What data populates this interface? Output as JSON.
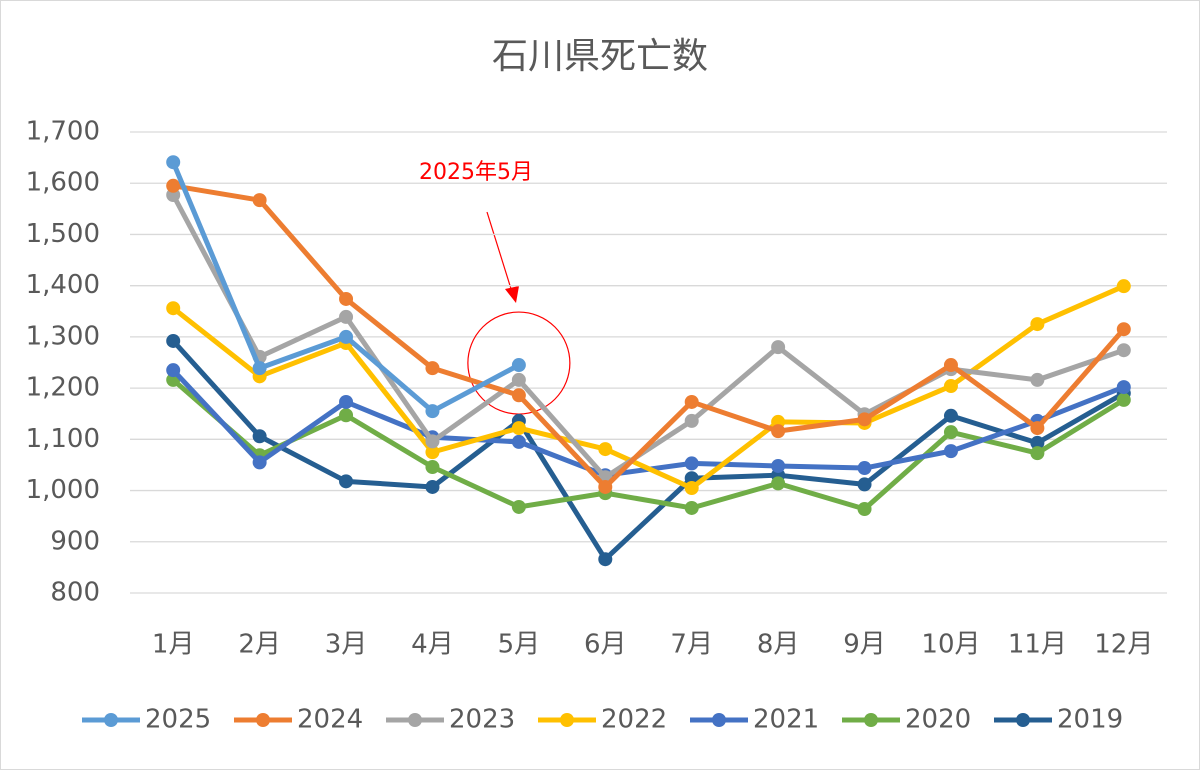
{
  "chart_data": {
    "type": "line",
    "title": "石川県死亡数",
    "annotation": "2025年5月",
    "categories": [
      "1月",
      "2月",
      "3月",
      "4月",
      "5月",
      "6月",
      "7月",
      "8月",
      "9月",
      "10月",
      "11月",
      "12月"
    ],
    "ylim": [
      800,
      1700
    ],
    "yticks": [
      800,
      900,
      {
        "value": 1000,
        "label": "1,000"
      },
      {
        "value": 1100,
        "label": "1,100"
      },
      {
        "value": 1200,
        "label": "1,200"
      },
      {
        "value": 1300,
        "label": "1,300"
      },
      {
        "value": 1400,
        "label": "1,400"
      },
      {
        "value": 1500,
        "label": "1,500"
      },
      {
        "value": 1600,
        "label": "1,600"
      },
      {
        "value": 1700,
        "label": "1,700"
      }
    ],
    "grid": true,
    "legend": "bottom",
    "series": [
      {
        "name": "2025",
        "color": "#5b9bd5",
        "values": [
          1641,
          1239,
          1300,
          1155,
          1245,
          null,
          null,
          null,
          null,
          null,
          null,
          null
        ]
      },
      {
        "name": "2024",
        "color": "#ed7d31",
        "values": [
          1595,
          1567,
          1374,
          1239,
          1186,
          1007,
          1173,
          1116,
          1139,
          1245,
          1122,
          1315
        ]
      },
      {
        "name": "2023",
        "color": "#a5a5a5",
        "values": [
          1577,
          1261,
          1339,
          1096,
          1216,
          1026,
          1136,
          1280,
          1149,
          1237,
          1216,
          1274
        ]
      },
      {
        "name": "2022",
        "color": "#ffc000",
        "values": [
          1356,
          1223,
          1288,
          1075,
          1122,
          1081,
          1005,
          1134,
          1132,
          1204,
          1325,
          1399
        ]
      },
      {
        "name": "2021",
        "color": "#4472c4",
        "values": [
          1235,
          1055,
          1173,
          1104,
          1095,
          1030,
          1053,
          1048,
          1044,
          1077,
          1136,
          1202
        ]
      },
      {
        "name": "2020",
        "color": "#70ad47",
        "values": [
          1216,
          1069,
          1147,
          1046,
          968,
          995,
          966,
          1014,
          964,
          1114,
          1073,
          1177
        ]
      },
      {
        "name": "2019",
        "color": "#255e91",
        "values": [
          1292,
          1106,
          1018,
          1007,
          1136,
          866,
          1024,
          1030,
          1012,
          1146,
          1093,
          1190
        ]
      }
    ]
  }
}
